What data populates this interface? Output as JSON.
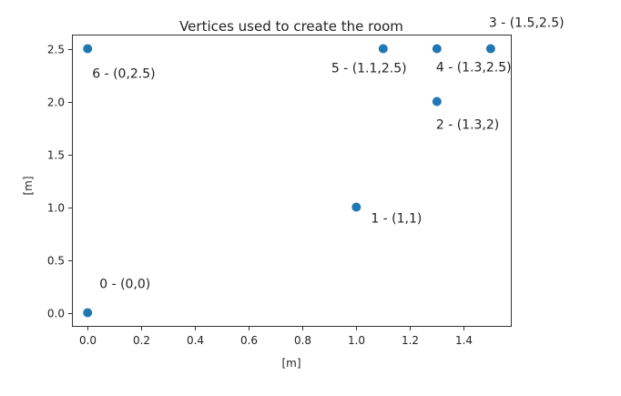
{
  "chart_data": {
    "type": "scatter",
    "title": "Vertices used to create the room",
    "xlabel": "[m]",
    "ylabel": "[m]",
    "xlim": [
      -0.055,
      1.575
    ],
    "ylim": [
      -0.125,
      2.625
    ],
    "xticks": [
      0.0,
      0.2,
      0.4,
      0.6,
      0.8,
      1.0,
      1.2,
      1.4
    ],
    "xtick_labels": [
      "0.0",
      "0.2",
      "0.4",
      "0.6",
      "0.8",
      "1.0",
      "1.2",
      "1.4"
    ],
    "yticks": [
      0.0,
      0.5,
      1.0,
      1.5,
      2.0,
      2.5
    ],
    "ytick_labels": [
      "0.0",
      "0.5",
      "1.0",
      "1.5",
      "2.0",
      "2.5"
    ],
    "grid": false,
    "color": "#1f77b4",
    "points": [
      {
        "x": 0.0,
        "y": 0.0,
        "label": "0 - (0,0)"
      },
      {
        "x": 1.0,
        "y": 1.0,
        "label": "1 - (1,1)"
      },
      {
        "x": 1.3,
        "y": 2.0,
        "label": "2 - (1.3,2)"
      },
      {
        "x": 1.5,
        "y": 2.5,
        "label": "3 - (1.5,2.5)"
      },
      {
        "x": 1.3,
        "y": 2.5,
        "label": "4 - (1.3,2.5)"
      },
      {
        "x": 1.1,
        "y": 2.5,
        "label": "5 - (1.1,2.5)"
      },
      {
        "x": 0.0,
        "y": 2.5,
        "label": "6 - (0,2.5)"
      }
    ]
  }
}
